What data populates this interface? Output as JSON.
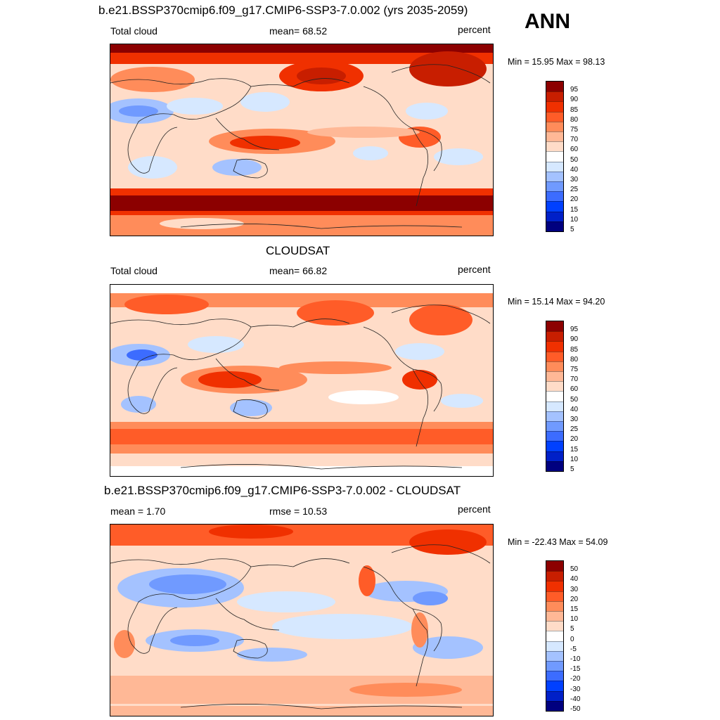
{
  "season": "ANN",
  "colormap_abs": [
    "#00007f",
    "#0020c8",
    "#0040ff",
    "#3c6cff",
    "#709aff",
    "#a4c2ff",
    "#d6e8ff",
    "#ffffff",
    "#ffdcc8",
    "#ffb896",
    "#ff8c5a",
    "#ff5c28",
    "#f03000",
    "#c81e00",
    "#8c0000"
  ],
  "colormap_diff": [
    "#00007f",
    "#0020c8",
    "#0040ff",
    "#3c6cff",
    "#709aff",
    "#a4c2ff",
    "#d6e8ff",
    "#ffffff",
    "#ffdcc8",
    "#ffb896",
    "#ff8c5a",
    "#ff5c28",
    "#f03000",
    "#c81e00",
    "#8c0000"
  ],
  "panels": [
    {
      "id": "model",
      "title": "b.e21.BSSP370cmip6.f09_g17.CMIP6-SSP3-7.0.002 (yrs 2035-2059)",
      "left_label": "Total cloud",
      "center_label": "mean=  68.52",
      "units": "percent",
      "minmax": "Min =  15.95 Max =  98.13",
      "levels": [
        "95",
        "90",
        "85",
        "80",
        "75",
        "70",
        "60",
        "50",
        "40",
        "30",
        "25",
        "20",
        "15",
        "10",
        "5"
      ]
    },
    {
      "id": "obs",
      "title": "CLOUDSAT",
      "left_label": "Total cloud",
      "center_label": "mean=  66.82",
      "units": "percent",
      "minmax": "Min =  15.14 Max =  94.20",
      "levels": [
        "95",
        "90",
        "85",
        "80",
        "75",
        "70",
        "60",
        "50",
        "40",
        "30",
        "25",
        "20",
        "15",
        "10",
        "5"
      ]
    },
    {
      "id": "diff",
      "title": "b.e21.BSSP370cmip6.f09_g17.CMIP6-SSP3-7.0.002 - CLOUDSAT",
      "left_label": "mean =   1.70",
      "center_label": "rmse =  10.53",
      "units": "percent",
      "minmax": "Min = -22.43 Max =  54.09",
      "levels": [
        "50",
        "40",
        "30",
        "20",
        "15",
        "10",
        "5",
        "0",
        "-5",
        "-10",
        "-15",
        "-20",
        "-30",
        "-40",
        "-50"
      ]
    }
  ]
}
